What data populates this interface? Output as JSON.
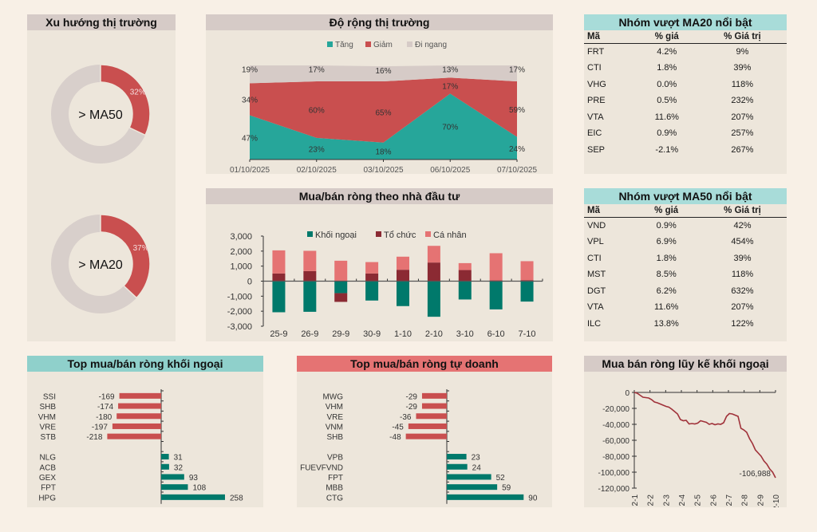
{
  "colors": {
    "teal": "#26a69a",
    "red": "#c94f4f",
    "gray": "#d6cbc7",
    "dark_teal": "#00796b",
    "maroon": "#8b2a33",
    "pink": "#e57373",
    "line": "#a0323a"
  },
  "trend": {
    "title": "Xu hướng thị trường",
    "donuts": [
      {
        "label": "> MA50",
        "pct": 32,
        "pct_label": "32%"
      },
      {
        "label": "> MA20",
        "pct": 37,
        "pct_label": "37%"
      }
    ]
  },
  "ma20": {
    "title": "Nhóm vượt MA20 nổi bật",
    "columns": [
      "Mã",
      "% giá",
      "% Giá trị"
    ],
    "rows": [
      [
        "FRT",
        "4.2%",
        "9%"
      ],
      [
        "CTI",
        "1.8%",
        "39%"
      ],
      [
        "VHG",
        "0.0%",
        "118%"
      ],
      [
        "PRE",
        "0.5%",
        "232%"
      ],
      [
        "VTA",
        "11.6%",
        "207%"
      ],
      [
        "EIC",
        "0.9%",
        "257%"
      ],
      [
        "SEP",
        "-2.1%",
        "267%"
      ]
    ]
  },
  "ma50": {
    "title": "Nhóm vượt MA50 nổi bật",
    "columns": [
      "Mã",
      "% giá",
      "% Giá trị"
    ],
    "rows": [
      [
        "VND",
        "0.9%",
        "42%"
      ],
      [
        "VPL",
        "6.9%",
        "454%"
      ],
      [
        "CTI",
        "1.8%",
        "39%"
      ],
      [
        "MST",
        "8.5%",
        "118%"
      ],
      [
        "DGT",
        "6.2%",
        "632%"
      ],
      [
        "VTA",
        "11.6%",
        "207%"
      ],
      [
        "ILC",
        "13.8%",
        "122%"
      ]
    ]
  },
  "chart_data": [
    {
      "id": "breadth",
      "type": "area",
      "title": "Độ rộng thị trường",
      "categories": [
        "01/10/2025",
        "02/10/2025",
        "03/10/2025",
        "06/10/2025",
        "07/10/2025"
      ],
      "stacked": true,
      "legend": "top",
      "series": [
        {
          "name": "Tăng",
          "values": [
            47,
            23,
            18,
            70,
            24
          ],
          "labels": [
            "47%",
            "23%",
            "18%",
            "70%",
            "24%"
          ]
        },
        {
          "name": "Giảm",
          "values": [
            34,
            60,
            65,
            17,
            59
          ],
          "labels": [
            "34%",
            "60%",
            "65%",
            "17%",
            "59%"
          ]
        },
        {
          "name": "Đi ngang",
          "values": [
            19,
            17,
            16,
            13,
            17
          ],
          "labels": [
            "19%",
            "17%",
            "16%",
            "13%",
            "17%"
          ]
        }
      ],
      "ylim": [
        0,
        100
      ]
    },
    {
      "id": "investors",
      "type": "bar",
      "title": "Mua/bán ròng theo nhà đầu tư",
      "categories": [
        "25-9",
        "26-9",
        "29-9",
        "30-9",
        "1-10",
        "2-10",
        "3-10",
        "6-10",
        "7-10"
      ],
      "stacked": true,
      "legend": "top",
      "series": [
        {
          "name": "Khối ngoại",
          "values": [
            -2070,
            -2040,
            -800,
            -1290,
            -1660,
            -2370,
            -1220,
            -1880,
            -1360
          ]
        },
        {
          "name": "Tổ chức",
          "values": [
            510,
            670,
            -580,
            510,
            760,
            1240,
            740,
            50,
            70
          ]
        },
        {
          "name": "Cá nhân",
          "values": [
            1540,
            1350,
            1360,
            760,
            870,
            1110,
            460,
            1810,
            1260
          ]
        }
      ],
      "yticks": [
        "3,000",
        "2,000",
        "1,000",
        "0",
        "-1,000",
        "-2,000",
        "-3,000"
      ],
      "ylim": [
        -3000,
        3000
      ]
    },
    {
      "id": "foreign_top",
      "type": "bar",
      "orientation": "horizontal",
      "title": "Top mua/bán ròng khối ngoại",
      "sell": [
        {
          "ticker": "SSI",
          "value": -169
        },
        {
          "ticker": "SHB",
          "value": -174
        },
        {
          "ticker": "VHM",
          "value": -180
        },
        {
          "ticker": "VRE",
          "value": -197
        },
        {
          "ticker": "STB",
          "value": -218
        }
      ],
      "buy": [
        {
          "ticker": "NLG",
          "value": 31
        },
        {
          "ticker": "ACB",
          "value": 32
        },
        {
          "ticker": "GEX",
          "value": 93
        },
        {
          "ticker": "FPT",
          "value": 108
        },
        {
          "ticker": "HPG",
          "value": 258
        }
      ]
    },
    {
      "id": "prop_top",
      "type": "bar",
      "orientation": "horizontal",
      "title": "Top mua/bán ròng tự doanh",
      "sell": [
        {
          "ticker": "MWG",
          "value": -29
        },
        {
          "ticker": "VHM",
          "value": -29
        },
        {
          "ticker": "VRE",
          "value": -36
        },
        {
          "ticker": "VNM",
          "value": -45
        },
        {
          "ticker": "SHB",
          "value": -48
        }
      ],
      "buy": [
        {
          "ticker": "VPB",
          "value": 23
        },
        {
          "ticker": "FUEVFVND",
          "value": 24
        },
        {
          "ticker": "FPT",
          "value": 52
        },
        {
          "ticker": "MBB",
          "value": 59
        },
        {
          "ticker": "CTG",
          "value": 90
        }
      ]
    },
    {
      "id": "foreign_cum",
      "type": "line",
      "title": "Mua bán ròng lũy kế khối ngoại",
      "xticks": [
        "2-1",
        "2-2",
        "2-3",
        "2-4",
        "2-5",
        "2-6",
        "2-7",
        "2-8",
        "2-9",
        "2-10"
      ],
      "yticks": [
        "0",
        "-20,000",
        "-40,000",
        "-60,000",
        "-80,000",
        "-100,000",
        "-120,000"
      ],
      "ylim": [
        -120000,
        0
      ],
      "values": [
        0,
        -1000,
        -3500,
        -6000,
        -6500,
        -7000,
        -9000,
        -12000,
        -13000,
        -14500,
        -16000,
        -17500,
        -18500,
        -21000,
        -24000,
        -27000,
        -34000,
        -35500,
        -35000,
        -39500,
        -39000,
        -39500,
        -38500,
        -35500,
        -36500,
        -37500,
        -40000,
        -39000,
        -40500,
        -39500,
        -40000,
        -38000,
        -30000,
        -26500,
        -27000,
        -28500,
        -30000,
        -45000,
        -47000,
        -50000,
        -58000,
        -64000,
        -72000,
        -76000,
        -80000,
        -86000,
        -90000,
        -96000,
        -100000,
        -106988
      ],
      "end_label": "-106,988"
    }
  ]
}
